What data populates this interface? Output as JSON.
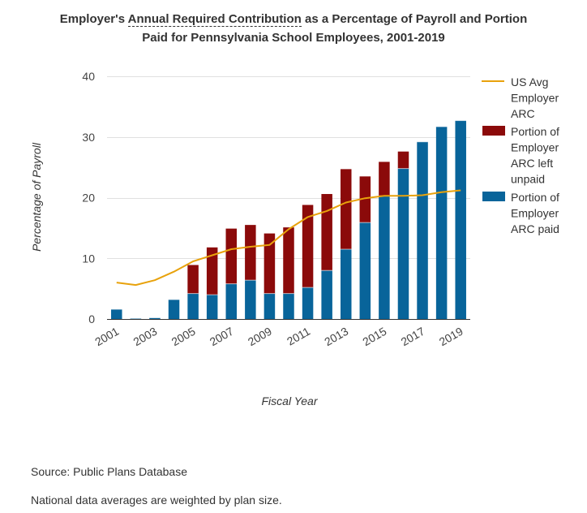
{
  "chart_data": {
    "type": "bar",
    "title_parts": {
      "pre": "Employer's ",
      "term": "Annual Required Contribution",
      "post": " as a Percentage of Payroll and Portion",
      "line2": "Paid for Pennsylvania School Employees, 2001-2019"
    },
    "xlabel": "Fiscal Year",
    "ylabel": "Percentage of Payroll",
    "ylim": [
      0,
      40
    ],
    "yticks": [
      0,
      10,
      20,
      30,
      40
    ],
    "grid": true,
    "stacked": true,
    "legend_position": "right",
    "categories": [
      "2001",
      "2002",
      "2003",
      "2004",
      "2005",
      "2006",
      "2007",
      "2008",
      "2009",
      "2010",
      "2011",
      "2012",
      "2013",
      "2014",
      "2015",
      "2016",
      "2017",
      "2018",
      "2019"
    ],
    "xtick_labels": [
      "2001",
      "2003",
      "2005",
      "2007",
      "2009",
      "2011",
      "2013",
      "2015",
      "2017",
      "2019"
    ],
    "series": [
      {
        "name": "Portion of Employer ARC paid",
        "type": "bar",
        "color": "#08649a",
        "values": [
          1.6,
          0.1,
          0.2,
          3.2,
          4.2,
          4.0,
          5.8,
          6.4,
          4.2,
          4.2,
          5.2,
          8.0,
          11.5,
          15.9,
          20.3,
          24.8,
          29.2,
          31.7,
          32.7
        ]
      },
      {
        "name": "Portion of Employer ARC left unpaid",
        "type": "bar",
        "color": "#8b0a0a",
        "values": [
          0,
          0,
          0,
          0,
          4.7,
          7.8,
          9.1,
          9.1,
          9.9,
          10.9,
          13.6,
          12.6,
          13.2,
          7.6,
          5.6,
          2.8,
          0,
          0,
          0
        ]
      },
      {
        "name": "US Avg Employer ARC",
        "type": "line",
        "color": "#e8a20c",
        "values": [
          6.0,
          5.6,
          6.4,
          7.8,
          9.5,
          10.5,
          11.5,
          11.9,
          12.2,
          14.8,
          16.8,
          17.8,
          19.2,
          19.9,
          20.3,
          20.3,
          20.4,
          20.9,
          21.2
        ]
      }
    ],
    "legend": [
      {
        "key": "line",
        "lines": [
          "US Avg",
          "Employer",
          "ARC"
        ],
        "color": "#e8a20c"
      },
      {
        "key": "unpaid",
        "lines": [
          "Portion of",
          "Employer",
          "ARC left",
          "unpaid"
        ],
        "color": "#8b0a0a"
      },
      {
        "key": "paid",
        "lines": [
          "Portion of",
          "Employer",
          "ARC paid"
        ],
        "color": "#08649a"
      }
    ]
  },
  "notes": {
    "source": "Source: Public Plans Database",
    "weighting": "National data averages are weighted by plan size."
  }
}
